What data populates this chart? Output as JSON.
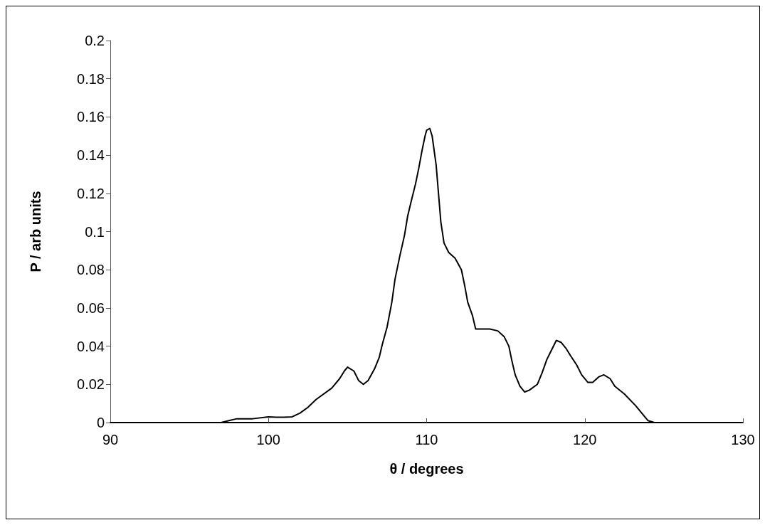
{
  "chart_data": {
    "type": "line",
    "xlabel": "θ / degrees",
    "ylabel": "P / arb units",
    "color": "#000000",
    "marker": "none",
    "line_style": "solid",
    "grid": false,
    "x": [
      90,
      97,
      97.5,
      98,
      99,
      100,
      100.5,
      101,
      101.5,
      102,
      102.5,
      103,
      104,
      104.5,
      104.8,
      105,
      105.4,
      105.7,
      106,
      106.3,
      106.7,
      107,
      107.2,
      107.5,
      107.8,
      108,
      108.3,
      108.6,
      108.8,
      109,
      109.3,
      109.5,
      109.7,
      109.9,
      110,
      110.2,
      110.35,
      110.6,
      110.9,
      111.1,
      111.4,
      111.8,
      112.2,
      112.4,
      112.6,
      112.9,
      113.1,
      114,
      114.5,
      114.9,
      115.2,
      115.4,
      115.6,
      115.9,
      116.2,
      116.5,
      117,
      117.3,
      117.6,
      117.9,
      118.2,
      118.5,
      118.8,
      119.1,
      119.5,
      119.8,
      120.2,
      120.5,
      120.9,
      121.2,
      121.6,
      121.9,
      122.5,
      123.2,
      123.6,
      124,
      124.4,
      130
    ],
    "values": [
      0,
      0,
      0.001,
      0.002,
      0.002,
      0.003,
      0.0028,
      0.0028,
      0.003,
      0.005,
      0.008,
      0.012,
      0.018,
      0.023,
      0.027,
      0.029,
      0.027,
      0.022,
      0.02,
      0.022,
      0.028,
      0.034,
      0.041,
      0.05,
      0.063,
      0.075,
      0.087,
      0.098,
      0.108,
      0.115,
      0.125,
      0.133,
      0.142,
      0.15,
      0.153,
      0.154,
      0.15,
      0.135,
      0.105,
      0.094,
      0.089,
      0.086,
      0.08,
      0.072,
      0.063,
      0.056,
      0.049,
      0.049,
      0.048,
      0.045,
      0.04,
      0.032,
      0.025,
      0.019,
      0.016,
      0.017,
      0.02,
      0.026,
      0.033,
      0.038,
      0.043,
      0.042,
      0.039,
      0.035,
      0.03,
      0.025,
      0.021,
      0.021,
      0.024,
      0.025,
      0.023,
      0.019,
      0.015,
      0.009,
      0.005,
      0.001,
      0,
      0
    ],
    "xlim": [
      90,
      130
    ],
    "xticks": [
      90,
      100,
      110,
      120,
      130
    ],
    "ylim": [
      0,
      0.2
    ],
    "yticks": [
      0,
      0.02,
      0.04,
      0.06,
      0.08,
      0.1,
      0.12,
      0.14,
      0.16,
      0.18,
      0.2
    ]
  }
}
